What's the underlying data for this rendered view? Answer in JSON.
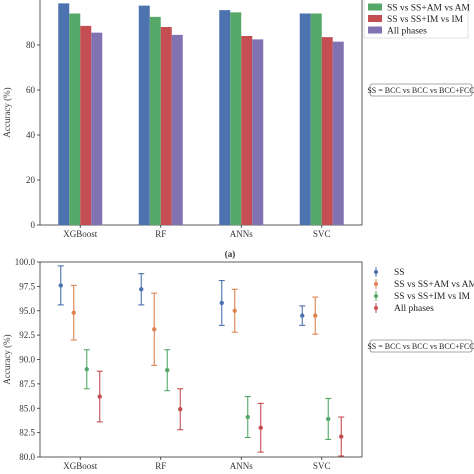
{
  "chart_data": [
    {
      "type": "bar",
      "panel_label": "(a)",
      "categories": [
        "XGBoost",
        "RF",
        "ANNs",
        "SVC"
      ],
      "ylabel": "Accuracy (%)",
      "ylim": [
        0,
        100
      ],
      "yticks": [
        0,
        20,
        40,
        60,
        80
      ],
      "legend_position": "top-right",
      "series": [
        {
          "name": "SS",
          "color": "#4C72B0",
          "values": [
            98.5,
            97.5,
            95.5,
            94.0
          ]
        },
        {
          "name": "SS vs SS+AM vs AM",
          "color": "#55A868",
          "values": [
            94.0,
            92.5,
            94.5,
            94.0
          ]
        },
        {
          "name": "SS vs SS+IM vs IM",
          "color": "#C44E52",
          "values": [
            88.5,
            88.0,
            84.0,
            83.5
          ]
        },
        {
          "name": "All phases",
          "color": "#8172B2",
          "values": [
            85.5,
            84.5,
            82.5,
            81.5
          ]
        }
      ],
      "annotation": "SS = BCC vs BCC vs BCC+FCC"
    },
    {
      "type": "scatter",
      "categories": [
        "XGBoost",
        "RF",
        "ANNs",
        "SVC"
      ],
      "ylabel": "Accuracy (%)",
      "ylim": [
        80.0,
        100.0
      ],
      "yticks": [
        80.0,
        82.5,
        85.0,
        87.5,
        90.0,
        92.5,
        95.0,
        97.5,
        100.0
      ],
      "legend_position": "top-right",
      "series": [
        {
          "name": "SS",
          "color": "#4C72B0",
          "values": [
            97.6,
            97.2,
            95.8,
            94.5
          ],
          "errors": [
            2.0,
            1.6,
            2.3,
            1.0
          ]
        },
        {
          "name": "SS vs SS+AM vs AM",
          "color": "#DD8452",
          "values": [
            94.8,
            93.1,
            95.0,
            94.5
          ],
          "errors": [
            2.8,
            3.7,
            2.2,
            1.9
          ]
        },
        {
          "name": "SS vs SS+IM vs IM",
          "color": "#55A868",
          "values": [
            89.0,
            88.9,
            84.1,
            83.9
          ],
          "errors": [
            2.0,
            2.1,
            2.1,
            2.1
          ]
        },
        {
          "name": "All phases",
          "color": "#C44E52",
          "values": [
            86.2,
            84.9,
            83.0,
            82.1
          ],
          "errors": [
            2.6,
            2.1,
            2.5,
            2.0
          ]
        }
      ],
      "annotation": "SS = BCC vs BCC vs BCC+FCC"
    }
  ]
}
